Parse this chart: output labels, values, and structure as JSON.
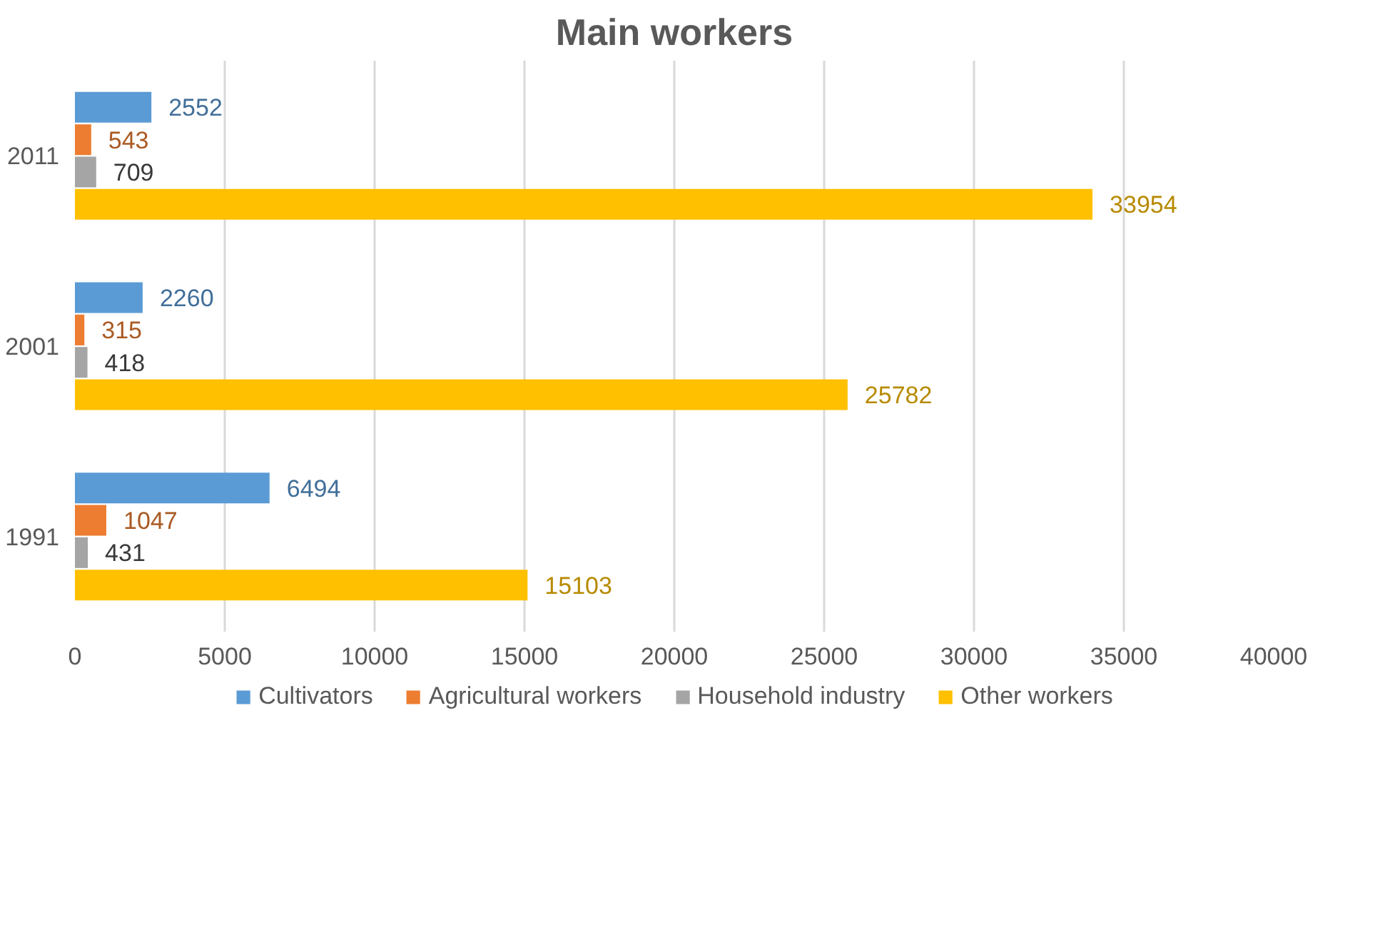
{
  "chart_data": {
    "type": "bar",
    "orientation": "horizontal",
    "title": "Main workers",
    "categories": [
      "2011",
      "2001",
      "1991"
    ],
    "series": [
      {
        "name": "Cultivators",
        "color": "#5b9bd5",
        "values": [
          2552,
          2260,
          6494
        ]
      },
      {
        "name": "Agricultural workers",
        "color": "#ed7d31",
        "values": [
          543,
          315,
          1047
        ]
      },
      {
        "name": "Household industry",
        "color": "#a5a5a5",
        "values": [
          709,
          418,
          431
        ]
      },
      {
        "name": "Other workers",
        "color": "#ffc000",
        "values": [
          33954,
          25782,
          15103
        ]
      }
    ],
    "xlim": [
      0,
      40000
    ],
    "xticks": [
      0,
      5000,
      10000,
      15000,
      20000,
      25000,
      30000,
      35000,
      40000
    ],
    "grid": "x",
    "legend": "bottom",
    "data_labels": true
  }
}
